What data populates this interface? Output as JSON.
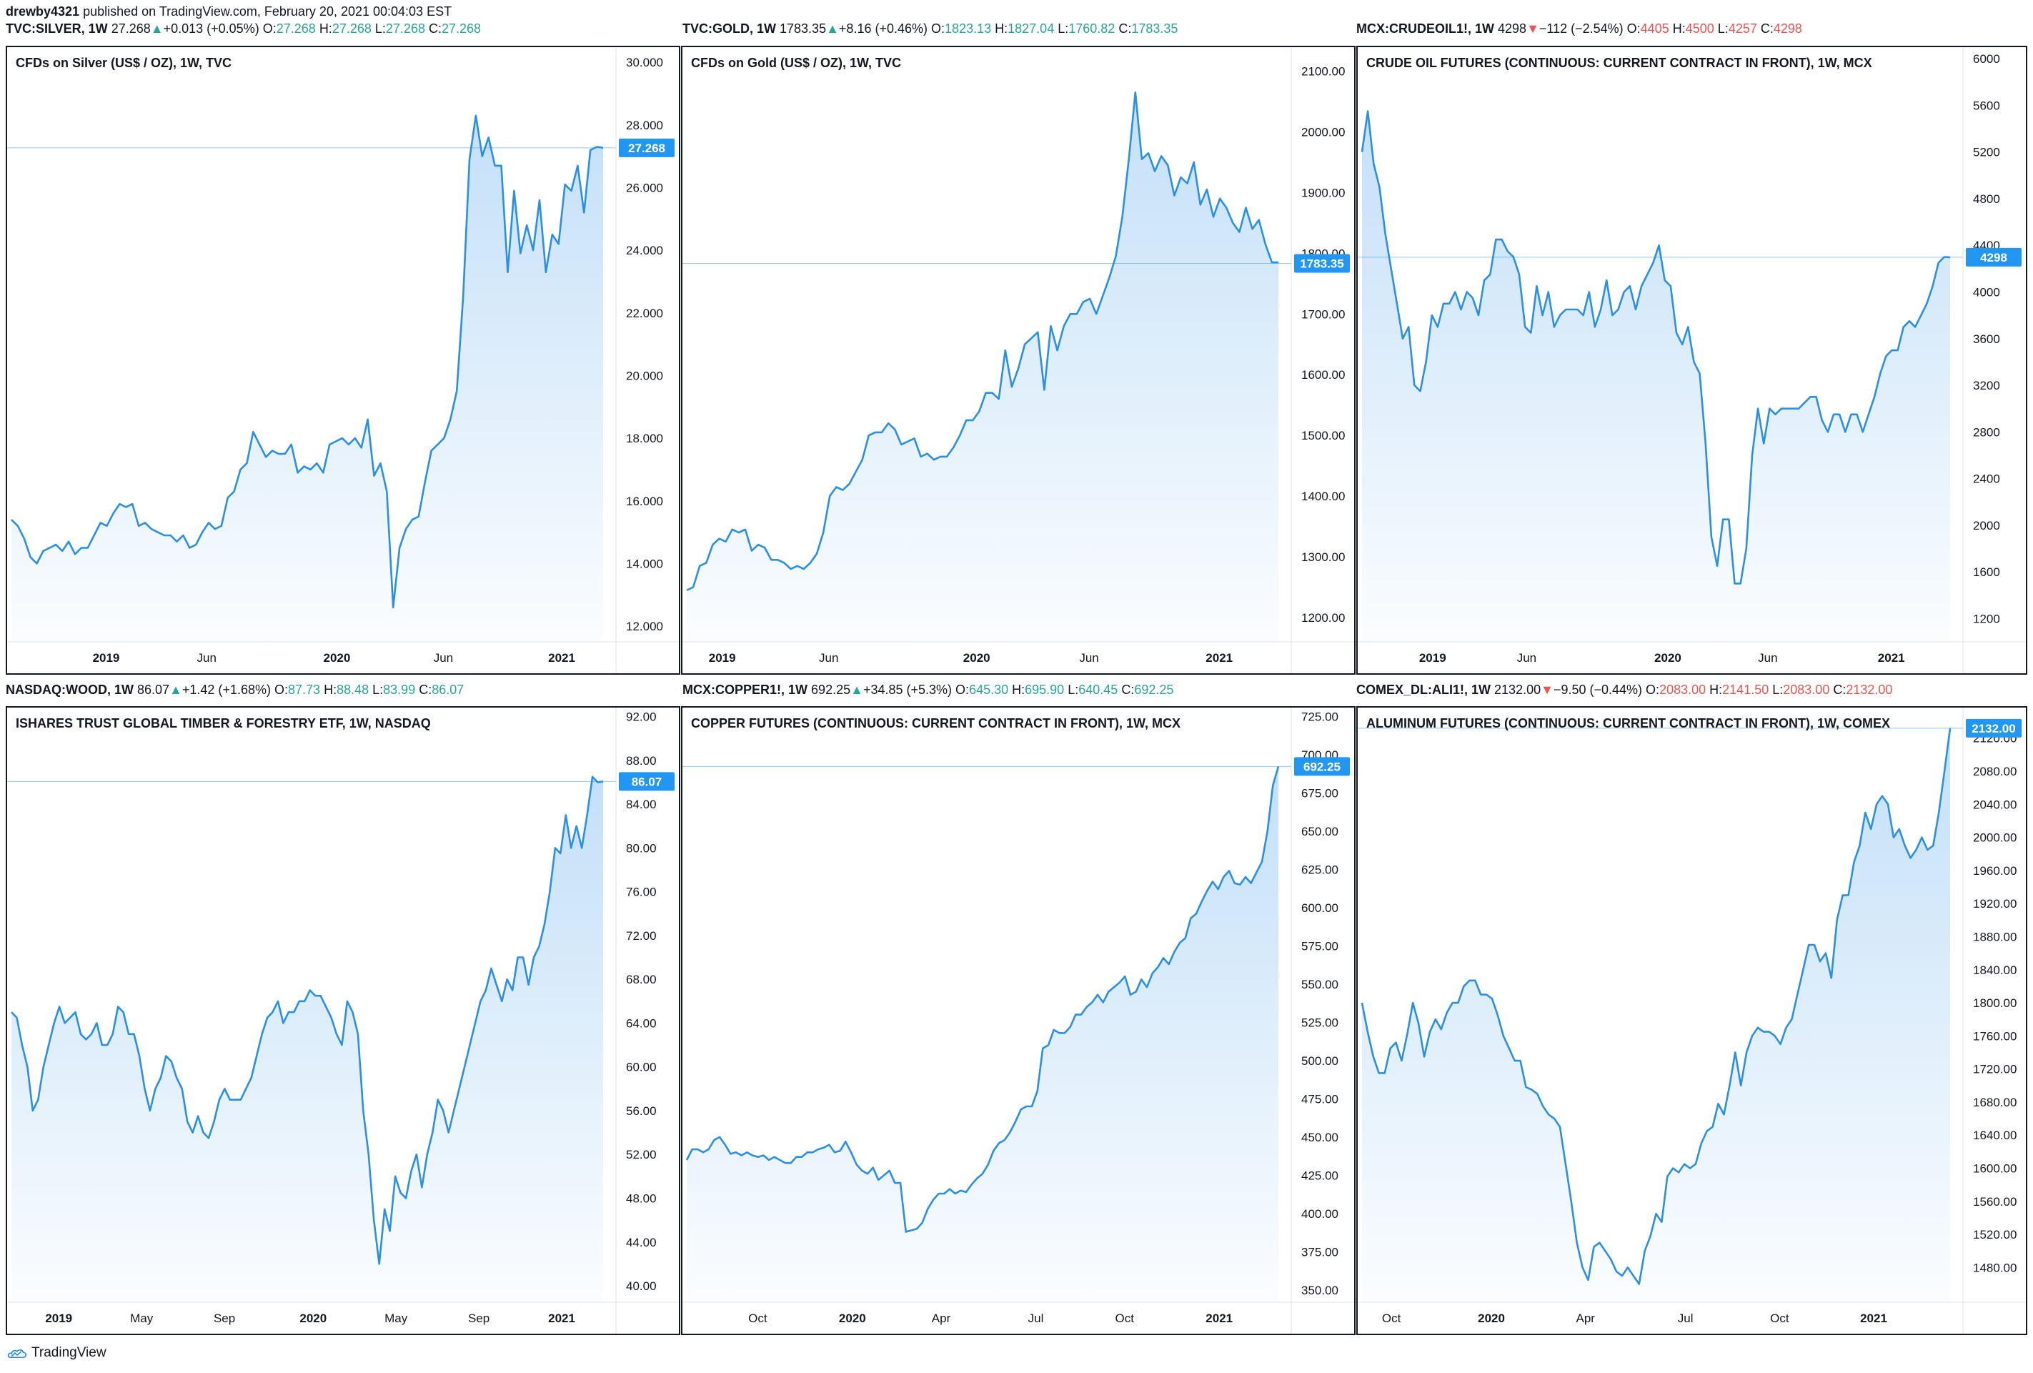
{
  "publish": {
    "author": "drewby4321",
    "text": "published on TradingView.com, February 20, 2021 00:04:03 EST"
  },
  "brand": {
    "name": "TradingView",
    "icon": "tradingview-logo-icon"
  },
  "colors": {
    "line": "#2a8fe6",
    "fill": "#2a8fe6",
    "price_tag": "#2196f3",
    "up": "#26a69a",
    "down": "#ef5350"
  },
  "panels": [
    {
      "symbol": "TVC:SILVER, 1W",
      "last": "27.268",
      "dir": "up",
      "change": "+0.013 (+0.05%)",
      "open": "27.268",
      "high": "27.268",
      "low": "27.268",
      "close": "27.268",
      "title": "CFDs on Silver (US$ / OZ), 1W, TVC",
      "price_label": "27.268"
    },
    {
      "symbol": "TVC:GOLD, 1W",
      "last": "1783.35",
      "dir": "up",
      "change": "+8.16 (+0.46%)",
      "open": "1823.13",
      "high": "1827.04",
      "low": "1760.82",
      "close": "1783.35",
      "title": "CFDs on Gold (US$ / OZ), 1W, TVC",
      "price_label": "1783.35"
    },
    {
      "symbol": "MCX:CRUDEOIL1!, 1W",
      "last": "4298",
      "dir": "down",
      "change": "−112 (−2.54%)",
      "open": "4405",
      "high": "4500",
      "low": "4257",
      "close": "4298",
      "title": "CRUDE OIL FUTURES (CONTINUOUS: CURRENT CONTRACT IN FRONT), 1W, MCX",
      "price_label": "4298"
    },
    {
      "symbol": "NASDAQ:WOOD, 1W",
      "last": "86.07",
      "dir": "up",
      "change": "+1.42 (+1.68%)",
      "open": "87.73",
      "high": "88.48",
      "low": "83.99",
      "close": "86.07",
      "title": "ISHARES TRUST GLOBAL TIMBER & FORESTRY ETF, 1W, NASDAQ",
      "price_label": "86.07"
    },
    {
      "symbol": "MCX:COPPER1!, 1W",
      "last": "692.25",
      "dir": "up",
      "change": "+34.85 (+5.3%)",
      "open": "645.30",
      "high": "695.90",
      "low": "640.45",
      "close": "692.25",
      "title": "COPPER FUTURES (CONTINUOUS: CURRENT CONTRACT IN FRONT), 1W, MCX",
      "price_label": "692.25"
    },
    {
      "symbol": "COMEX_DL:ALI1!, 1W",
      "last": "2132.00",
      "dir": "down",
      "change": "−9.50 (−0.44%)",
      "open": "2083.00",
      "high": "2141.50",
      "low": "2083.00",
      "close": "2132.00",
      "title": "ALUMINUM FUTURES (CONTINUOUS: CURRENT CONTRACT IN FRONT), 1W, COMEX",
      "price_label": "2132.00"
    }
  ],
  "chart_data": [
    {
      "type": "area",
      "title": "CFDs on Silver (US$ / OZ), 1W, TVC",
      "ylim": [
        11.5,
        30.3
      ],
      "yticks": [
        "12.000",
        "14.000",
        "16.000",
        "18.000",
        "20.000",
        "22.000",
        "24.000",
        "26.000",
        "28.000",
        "30.000"
      ],
      "ytick_values": [
        12,
        14,
        16,
        18,
        20,
        22,
        24,
        26,
        28,
        30
      ],
      "xticks": [
        {
          "label": "2019",
          "t": 0.16
        },
        {
          "label": "Jun",
          "t": 0.33
        },
        {
          "label": "2020",
          "t": 0.55
        },
        {
          "label": "Jun",
          "t": 0.73
        },
        {
          "label": "2021",
          "t": 0.93
        }
      ],
      "last_value": 27.268,
      "values": [
        15.4,
        15.2,
        14.8,
        14.2,
        14.0,
        14.4,
        14.5,
        14.6,
        14.4,
        14.7,
        14.3,
        14.5,
        14.5,
        14.9,
        15.3,
        15.2,
        15.6,
        15.9,
        15.8,
        15.9,
        15.2,
        15.3,
        15.1,
        15.0,
        14.9,
        14.9,
        14.7,
        14.9,
        14.5,
        14.6,
        15.0,
        15.3,
        15.1,
        15.2,
        16.1,
        16.3,
        17.0,
        17.2,
        18.2,
        17.8,
        17.4,
        17.6,
        17.5,
        17.5,
        17.8,
        16.9,
        17.1,
        17.0,
        17.2,
        16.9,
        17.8,
        17.9,
        18.0,
        17.8,
        18.0,
        17.7,
        18.6,
        16.8,
        17.2,
        16.3,
        12.6,
        14.5,
        15.1,
        15.4,
        15.5,
        16.6,
        17.6,
        17.8,
        18.0,
        18.6,
        19.5,
        22.5,
        26.9,
        28.3,
        27.0,
        27.6,
        26.7,
        26.7,
        23.3,
        25.9,
        23.9,
        24.8,
        24.0,
        25.6,
        23.3,
        24.5,
        24.2,
        26.1,
        25.9,
        26.7,
        25.2,
        27.2,
        27.3,
        27.27
      ]
    },
    {
      "type": "area",
      "title": "CFDs on Gold (US$ / OZ), 1W, TVC",
      "ylim": [
        1160,
        2130
      ],
      "yticks": [
        "1200.00",
        "1300.00",
        "1400.00",
        "1500.00",
        "1600.00",
        "1700.00",
        "1800.00",
        "1900.00",
        "2000.00",
        "2100.00"
      ],
      "ytick_values": [
        1200,
        1300,
        1400,
        1500,
        1600,
        1700,
        1800,
        1900,
        2000,
        2100
      ],
      "xticks": [
        {
          "label": "2019",
          "t": 0.06
        },
        {
          "label": "Jun",
          "t": 0.24
        },
        {
          "label": "2020",
          "t": 0.49
        },
        {
          "label": "Jun",
          "t": 0.68
        },
        {
          "label": "2021",
          "t": 0.9
        }
      ],
      "last_value": 1783.35,
      "values": [
        1245,
        1250,
        1285,
        1290,
        1320,
        1330,
        1325,
        1345,
        1340,
        1345,
        1310,
        1320,
        1315,
        1295,
        1295,
        1290,
        1280,
        1285,
        1280,
        1290,
        1305,
        1340,
        1400,
        1415,
        1410,
        1420,
        1440,
        1460,
        1500,
        1505,
        1505,
        1520,
        1510,
        1485,
        1490,
        1495,
        1465,
        1470,
        1460,
        1465,
        1465,
        1480,
        1500,
        1525,
        1525,
        1540,
        1570,
        1570,
        1560,
        1640,
        1580,
        1610,
        1650,
        1660,
        1670,
        1575,
        1680,
        1640,
        1680,
        1700,
        1700,
        1720,
        1725,
        1700,
        1730,
        1760,
        1795,
        1860,
        1955,
        2065,
        1955,
        1965,
        1935,
        1960,
        1945,
        1895,
        1925,
        1915,
        1950,
        1880,
        1905,
        1860,
        1890,
        1875,
        1850,
        1835,
        1875,
        1840,
        1855,
        1815,
        1785,
        1785
      ]
    },
    {
      "type": "area",
      "title": "CRUDE OIL FUTURES (CONTINUOUS: CURRENT CONTRACT IN FRONT), 1W, MCX",
      "ylim": [
        1000,
        6050
      ],
      "yticks": [
        "1200",
        "1600",
        "2000",
        "2400",
        "2800",
        "3200",
        "3600",
        "4000",
        "4400",
        "4800",
        "5200",
        "5600",
        "6000"
      ],
      "ytick_values": [
        1200,
        1600,
        2000,
        2400,
        2800,
        3200,
        3600,
        4000,
        4400,
        4800,
        5200,
        5600,
        6000
      ],
      "xticks": [
        {
          "label": "2019",
          "t": 0.12
        },
        {
          "label": "Jun",
          "t": 0.28
        },
        {
          "label": "2020",
          "t": 0.52
        },
        {
          "label": "Jun",
          "t": 0.69
        },
        {
          "label": "2021",
          "t": 0.9
        }
      ],
      "last_value": 4298,
      "values": [
        5200,
        5550,
        5100,
        4900,
        4500,
        4200,
        3900,
        3600,
        3700,
        3200,
        3150,
        3400,
        3800,
        3700,
        3900,
        3900,
        4000,
        3850,
        4000,
        3950,
        3800,
        4100,
        4150,
        4450,
        4450,
        4350,
        4300,
        4150,
        3700,
        3650,
        4050,
        3800,
        4000,
        3700,
        3800,
        3850,
        3850,
        3850,
        3800,
        4000,
        3700,
        3850,
        4100,
        3800,
        3850,
        4000,
        4050,
        3850,
        4050,
        4150,
        4250,
        4400,
        4100,
        4050,
        3650,
        3550,
        3700,
        3400,
        3300,
        2700,
        1900,
        1650,
        2050,
        2050,
        1500,
        1500,
        1800,
        2600,
        3000,
        2700,
        3000,
        2950,
        3000,
        3000,
        3000,
        3000,
        3050,
        3100,
        3100,
        2900,
        2800,
        2950,
        2950,
        2800,
        2950,
        2950,
        2800,
        2950,
        3100,
        3300,
        3450,
        3500,
        3500,
        3700,
        3750,
        3700,
        3800,
        3900,
        4050,
        4250,
        4300,
        4298
      ]
    },
    {
      "type": "area",
      "title": "ISHARES TRUST GLOBAL TIMBER & FORESTRY ETF, 1W, NASDAQ",
      "ylim": [
        38.5,
        92.3
      ],
      "yticks": [
        "40.00",
        "44.00",
        "48.00",
        "52.00",
        "56.00",
        "60.00",
        "64.00",
        "68.00",
        "72.00",
        "76.00",
        "80.00",
        "84.00",
        "88.00",
        "92.00"
      ],
      "ytick_values": [
        40,
        44,
        48,
        52,
        56,
        60,
        64,
        68,
        72,
        76,
        80,
        84,
        88,
        92
      ],
      "xticks": [
        {
          "label": "2019",
          "t": 0.08
        },
        {
          "label": "May",
          "t": 0.22
        },
        {
          "label": "Sep",
          "t": 0.36
        },
        {
          "label": "2020",
          "t": 0.51
        },
        {
          "label": "May",
          "t": 0.65
        },
        {
          "label": "Sep",
          "t": 0.79
        },
        {
          "label": "2021",
          "t": 0.93
        }
      ],
      "last_value": 86.07,
      "values": [
        65,
        64.5,
        62,
        60,
        56,
        57,
        60,
        62,
        64,
        65.5,
        64,
        64.5,
        65,
        63,
        62.5,
        63,
        64,
        62,
        62,
        63,
        65.5,
        65,
        63,
        63,
        61,
        58,
        56,
        58,
        59,
        61,
        60.5,
        59,
        58,
        55,
        54,
        55.5,
        54,
        53.5,
        55,
        57,
        58,
        57,
        57,
        57,
        58,
        59,
        61,
        63,
        64.5,
        65,
        66,
        64,
        65,
        65,
        66,
        66,
        67,
        66.5,
        66.5,
        65.5,
        64.5,
        63,
        62,
        66,
        65,
        63,
        56,
        52,
        46,
        42,
        47,
        45,
        50,
        48.5,
        48,
        50.5,
        52,
        49,
        52,
        54,
        57,
        56,
        54,
        56,
        58,
        60,
        62,
        64,
        66,
        67,
        69,
        67.5,
        66,
        68,
        67,
        70,
        70,
        67.5,
        70,
        71,
        73,
        76,
        80,
        79.5,
        83,
        80,
        82,
        80,
        83,
        86.5,
        86,
        86.07
      ]
    },
    {
      "type": "area",
      "title": "COPPER FUTURES (CONTINUOUS: CURRENT CONTRACT IN FRONT), 1W, MCX",
      "ylim": [
        342,
        727
      ],
      "yticks": [
        "350.00",
        "375.00",
        "400.00",
        "425.00",
        "450.00",
        "475.00",
        "500.00",
        "525.00",
        "550.00",
        "575.00",
        "600.00",
        "625.00",
        "650.00",
        "675.00",
        "700.00",
        "725.00"
      ],
      "ytick_values": [
        350,
        375,
        400,
        425,
        450,
        475,
        500,
        525,
        550,
        575,
        600,
        625,
        650,
        675,
        700,
        725
      ],
      "xticks": [
        {
          "label": "Oct",
          "t": 0.12
        },
        {
          "label": "2020",
          "t": 0.28
        },
        {
          "label": "Apr",
          "t": 0.43
        },
        {
          "label": "Jul",
          "t": 0.59
        },
        {
          "label": "Oct",
          "t": 0.74
        },
        {
          "label": "2021",
          "t": 0.9
        }
      ],
      "last_value": 692.25,
      "values": [
        435,
        442,
        442,
        440,
        442,
        448,
        450,
        445,
        439,
        440,
        438,
        440,
        438,
        437,
        438,
        435,
        437,
        435,
        433,
        433,
        437,
        437,
        440,
        440,
        442,
        443,
        445,
        440,
        441,
        447,
        440,
        432,
        428,
        426,
        430,
        422,
        425,
        428,
        420,
        420,
        388,
        389,
        390,
        394,
        403,
        409,
        413,
        413,
        416,
        413,
        415,
        414,
        419,
        423,
        426,
        432,
        441,
        446,
        448,
        453,
        460,
        468,
        470,
        470,
        480,
        508,
        510,
        520,
        518,
        518,
        522,
        530,
        530,
        535,
        538,
        543,
        538,
        545,
        548,
        551,
        555,
        543,
        545,
        553,
        548,
        557,
        561,
        567,
        563,
        571,
        577,
        580,
        593,
        596,
        604,
        611,
        617,
        612,
        620,
        624,
        616,
        615,
        620,
        616,
        623,
        630,
        650,
        680,
        692.25
      ]
    },
    {
      "type": "area",
      "title": "ALUMINUM FUTURES (CONTINUOUS: CURRENT CONTRACT IN FRONT), 1W, COMEX",
      "ylim": [
        1438,
        2150
      ],
      "yticks": [
        "1480.00",
        "1520.00",
        "1560.00",
        "1600.00",
        "1640.00",
        "1680.00",
        "1720.00",
        "1760.00",
        "1800.00",
        "1840.00",
        "1880.00",
        "1920.00",
        "1960.00",
        "2000.00",
        "2040.00",
        "2080.00",
        "2120.00"
      ],
      "ytick_values": [
        1480,
        1520,
        1560,
        1600,
        1640,
        1680,
        1720,
        1760,
        1800,
        1840,
        1880,
        1920,
        1960,
        2000,
        2040,
        2080,
        2120
      ],
      "xticks": [
        {
          "label": "Oct",
          "t": 0.05
        },
        {
          "label": "2020",
          "t": 0.22
        },
        {
          "label": "Apr",
          "t": 0.38
        },
        {
          "label": "Jul",
          "t": 0.55
        },
        {
          "label": "Oct",
          "t": 0.71
        },
        {
          "label": "2021",
          "t": 0.87
        }
      ],
      "last_value": 2132.0,
      "values": [
        1800,
        1765,
        1735,
        1715,
        1715,
        1745,
        1752,
        1730,
        1762,
        1800,
        1775,
        1735,
        1765,
        1780,
        1768,
        1788,
        1800,
        1800,
        1820,
        1827,
        1827,
        1810,
        1810,
        1805,
        1785,
        1760,
        1745,
        1730,
        1730,
        1698,
        1695,
        1690,
        1675,
        1665,
        1660,
        1650,
        1605,
        1560,
        1510,
        1480,
        1465,
        1505,
        1510,
        1500,
        1490,
        1475,
        1470,
        1480,
        1470,
        1460,
        1500,
        1518,
        1545,
        1535,
        1590,
        1600,
        1595,
        1605,
        1600,
        1605,
        1630,
        1645,
        1650,
        1678,
        1665,
        1700,
        1740,
        1700,
        1740,
        1760,
        1770,
        1765,
        1765,
        1760,
        1750,
        1770,
        1780,
        1810,
        1840,
        1870,
        1870,
        1850,
        1860,
        1830,
        1900,
        1930,
        1930,
        1970,
        1990,
        2030,
        2010,
        2040,
        2050,
        2040,
        2000,
        2010,
        1990,
        1975,
        1985,
        2000,
        1985,
        1990,
        2030,
        2080,
        2132
      ]
    }
  ]
}
